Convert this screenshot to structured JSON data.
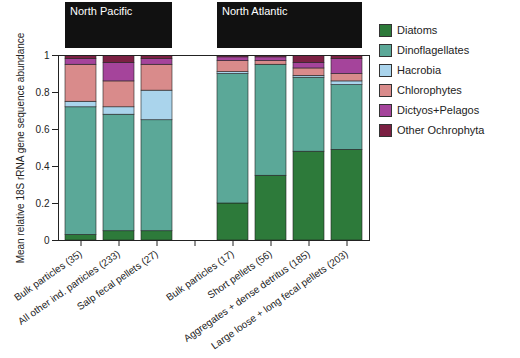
{
  "chart_data": {
    "type": "bar",
    "stacked": true,
    "y_label": "Mean relative 18S rRNA gene sequence abundance",
    "annotations": [
      "North Pacific",
      "North Atlantic"
    ],
    "categories": [
      "Bulk particles (35)",
      "All other ind. particles (233)",
      "Salp fecal pellets (27)",
      null,
      "Bulk particles (17)",
      "Short pellets (56)",
      "Aggregates + dense detritus (185)",
      "Large loose + long fecal pellets (203)"
    ],
    "ylim": [
      0,
      1
    ],
    "yticks": [
      0,
      0.2,
      0.4,
      0.6,
      0.8,
      1
    ],
    "legend": "right",
    "series": [
      {
        "name": "Diatoms",
        "color": "#2d7a3a",
        "values": [
          0.03,
          0.05,
          0.05,
          null,
          0.2,
          0.35,
          0.48,
          0.49
        ]
      },
      {
        "name": "Dinoflagellates",
        "color": "#5ba898",
        "values": [
          0.69,
          0.63,
          0.6,
          null,
          0.7,
          0.6,
          0.4,
          0.35
        ]
      },
      {
        "name": "Hacrobia",
        "color": "#aad4ec",
        "values": [
          0.03,
          0.04,
          0.16,
          null,
          0.01,
          0.0,
          0.01,
          0.02
        ]
      },
      {
        "name": "Chlorophytes",
        "color": "#d98b8b",
        "values": [
          0.2,
          0.14,
          0.14,
          null,
          0.06,
          0.02,
          0.04,
          0.04
        ]
      },
      {
        "name": "Dictyos+Pelagos",
        "color": "#a5449b",
        "values": [
          0.03,
          0.1,
          0.03,
          null,
          0.02,
          0.02,
          0.03,
          0.08
        ]
      },
      {
        "name": "Other Ochrophyta",
        "color": "#7b2043",
        "values": [
          0.02,
          0.04,
          0.02,
          null,
          0.01,
          0.01,
          0.04,
          0.02
        ]
      }
    ]
  }
}
